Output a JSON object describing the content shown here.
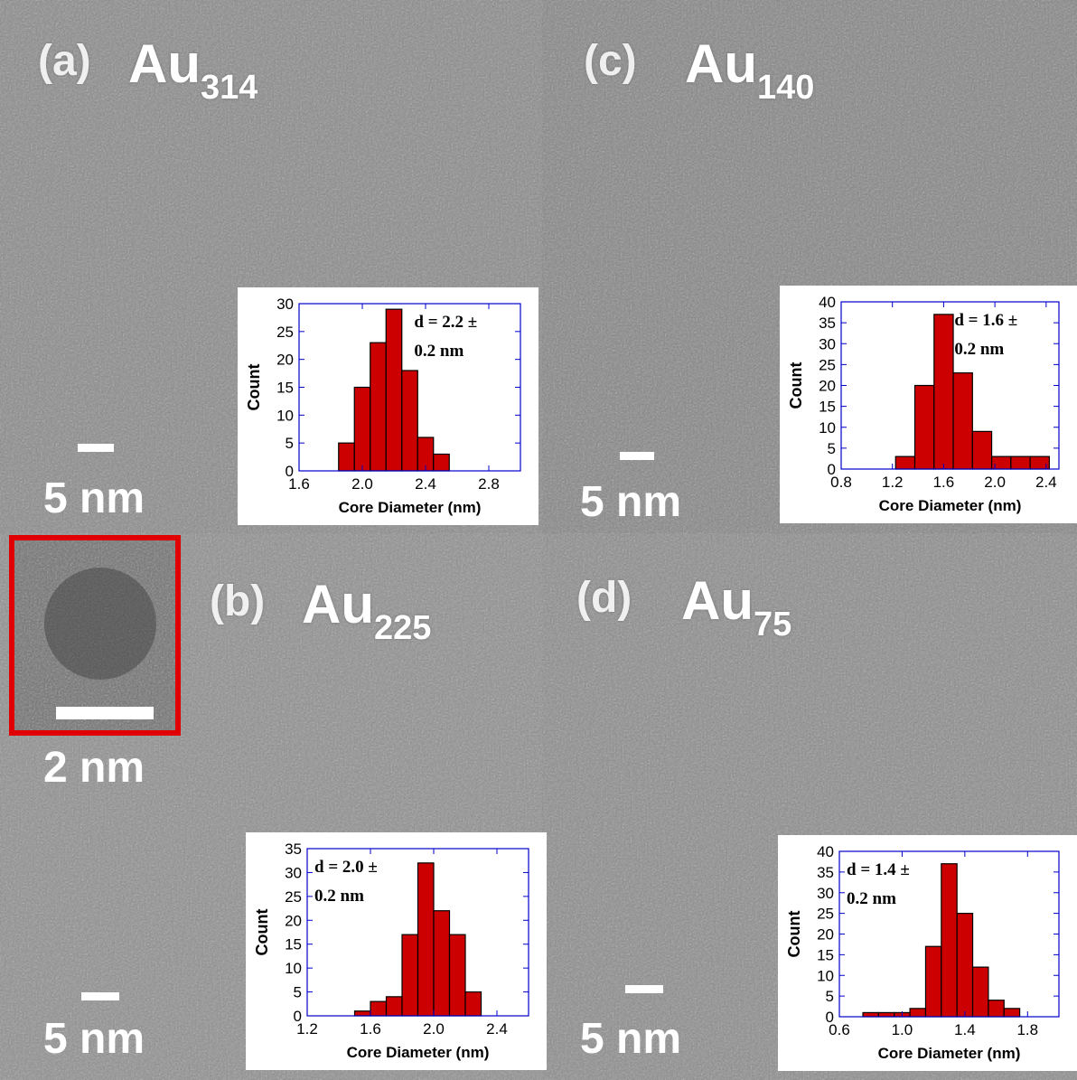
{
  "colors": {
    "bar_fill": "#cc0000",
    "plot_frame": "#0000cc",
    "zoom_border": "#e00000",
    "label_text": "#ffffff"
  },
  "panels": [
    {
      "id": "a",
      "letter": "(a)",
      "species_base": "Au",
      "species_sub": "314",
      "scale_label": "5 nm",
      "tone": "#8a8a8a"
    },
    {
      "id": "c",
      "letter": "(c)",
      "species_base": "Au",
      "species_sub": "140",
      "scale_label": "5 nm",
      "tone": "#858585"
    },
    {
      "id": "b",
      "letter": "(b)",
      "species_base": "Au",
      "species_sub": "225",
      "scale_label": "5 nm",
      "tone": "#8f8f8f"
    },
    {
      "id": "d",
      "letter": "(d)",
      "species_base": "Au",
      "species_sub": "75",
      "scale_label": "5 nm",
      "tone": "#8c8c8c"
    }
  ],
  "zoom_inset": {
    "scale_label": "2 nm"
  },
  "chart_data": [
    {
      "panel": "a",
      "type": "bar",
      "xlabel": "Core Diameter (nm)",
      "ylabel": "Count",
      "annotation_line1": "d = 2.2 ±",
      "annotation_line2": "0.2 nm",
      "xlim": [
        1.6,
        3.0
      ],
      "ylim": [
        0,
        30
      ],
      "xticks": [
        "1.6",
        "2.0",
        "2.4",
        "2.8"
      ],
      "yticks": [
        "0",
        "5",
        "10",
        "15",
        "20",
        "25",
        "30"
      ],
      "bin_width": 0.1,
      "bins": [
        1.8,
        1.9,
        2.0,
        2.1,
        2.2,
        2.3,
        2.4,
        2.5,
        2.6
      ],
      "values": [
        0,
        5,
        15,
        23,
        29,
        18,
        6,
        3,
        0
      ]
    },
    {
      "panel": "c",
      "type": "bar",
      "xlabel": "Core Diameter (nm)",
      "ylabel": "Count",
      "annotation_line1": "d = 1.6 ±",
      "annotation_line2": "0.2 nm",
      "xlim": [
        0.8,
        2.5
      ],
      "ylim": [
        0,
        40
      ],
      "xticks": [
        "0.8",
        "1.2",
        "1.6",
        "2.0",
        "2.4"
      ],
      "yticks": [
        "0",
        "5",
        "10",
        "15",
        "20",
        "25",
        "30",
        "35",
        "40"
      ],
      "bin_width": 0.15,
      "bins": [
        1.3,
        1.45,
        1.6,
        1.75,
        1.9,
        2.05,
        2.2,
        2.35
      ],
      "values": [
        3,
        20,
        37,
        23,
        9,
        3,
        3,
        3
      ]
    },
    {
      "panel": "b",
      "type": "bar",
      "xlabel": "Core Diameter (nm)",
      "ylabel": "Count",
      "annotation_line1": "d = 2.0 ±",
      "annotation_line2": "0.2 nm",
      "xlim": [
        1.2,
        2.6
      ],
      "ylim": [
        0,
        35
      ],
      "xticks": [
        "1.2",
        "1.6",
        "2.0",
        "2.4"
      ],
      "yticks": [
        "0",
        "5",
        "10",
        "15",
        "20",
        "25",
        "30",
        "35"
      ],
      "bin_width": 0.1,
      "bins": [
        1.45,
        1.55,
        1.65,
        1.75,
        1.85,
        1.95,
        2.05,
        2.15,
        2.25,
        2.35,
        2.45
      ],
      "values": [
        0,
        1,
        3,
        4,
        17,
        32,
        22,
        17,
        5,
        0,
        0
      ]
    },
    {
      "panel": "d",
      "type": "bar",
      "xlabel": "Core Diameter (nm)",
      "ylabel": "Count",
      "annotation_line1": "d = 1.4 ±",
      "annotation_line2": "0.2 nm",
      "xlim": [
        0.6,
        2.0
      ],
      "ylim": [
        0,
        40
      ],
      "xticks": [
        "0.6",
        "1.0",
        "1.4",
        "1.8"
      ],
      "yticks": [
        "0",
        "5",
        "10",
        "15",
        "20",
        "25",
        "30",
        "35",
        "40"
      ],
      "bin_width": 0.1,
      "bins": [
        0.8,
        0.9,
        1.0,
        1.1,
        1.2,
        1.3,
        1.4,
        1.5,
        1.6,
        1.7,
        1.8,
        1.9
      ],
      "values": [
        1,
        1,
        1,
        2,
        17,
        37,
        25,
        12,
        4,
        2,
        0,
        0
      ]
    }
  ]
}
